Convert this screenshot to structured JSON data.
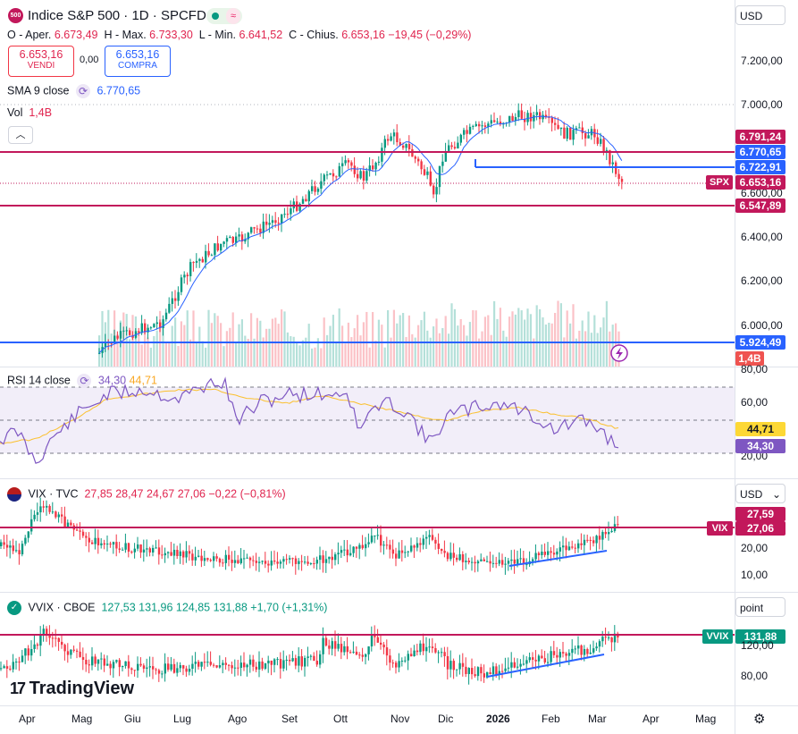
{
  "main": {
    "logo_text": "500",
    "title": "Indice S&P 500 · 1D · SPCFD",
    "ohlc": {
      "open_label": "O - Aper.",
      "open": "6.673,49",
      "high_label": "H - Max.",
      "high": "6.733,30",
      "low_label": "L - Min.",
      "low": "6.641,52",
      "close_label": "C - Chius.",
      "close": "6.653,16",
      "change": "−19,45 (−0,29%)"
    },
    "sell": {
      "price": "6.653,16",
      "label": "VENDI"
    },
    "spread": "0,00",
    "buy": {
      "price": "6.653,16",
      "label": "COMPRA"
    },
    "sma": {
      "label": "SMA 9 close",
      "value": "6.770,65"
    },
    "vol": {
      "label": "Vol",
      "value": "1,4B"
    },
    "currency": "USD",
    "y_ticks": [
      "7.200,00",
      "7.000,00",
      "6.600,00",
      "6.400,00",
      "6.200,00",
      "6.000,00"
    ],
    "price_tags": {
      "t1": "6.791,24",
      "t2": "6.770,65",
      "t3": "6.722,91",
      "spx_label": "SPX",
      "spx": "6.653,16",
      "t5": "6.547,89",
      "t6": "5.924,49",
      "vol": "1,4B"
    }
  },
  "rsi": {
    "label": "RSI 14 close",
    "value1": "34,30",
    "value2": "44,71",
    "y_ticks": [
      "80,00",
      "60,00",
      "40,00",
      "20,00"
    ],
    "tag_ma": "44,71",
    "tag_rsi": "34,30"
  },
  "vix": {
    "title": "VIX · TVC",
    "values": "27,85  28,47  24,67  27,06  −0,22 (−0,81%)",
    "currency": "USD",
    "y_ticks": [
      "20,00",
      "10,00"
    ],
    "tag_top": "27,59",
    "tag_label": "VIX",
    "tag_value": "27,06"
  },
  "vvix": {
    "title": "VVIX · CBOE",
    "values": "127,53  131,96  124,85  131,88  +1,70 (+1,31%)",
    "unit_button": "point",
    "y_ticks": [
      "120,00",
      "80,00"
    ],
    "tag_label": "VVIX",
    "tag_value": "131,88"
  },
  "brand": "TradingView",
  "x_axis": [
    "Apr",
    "Mag",
    "Giu",
    "Lug",
    "Ago",
    "Set",
    "Ott",
    "Nov",
    "Dic",
    "2026",
    "Feb",
    "Mar",
    "Apr",
    "Mag"
  ],
  "colors": {
    "up": "#089981",
    "down": "#f23645",
    "line": "#2962ff",
    "level": "#c2185b",
    "rsi": "#7e57c2",
    "rsi_ma": "#fbc02d"
  }
}
